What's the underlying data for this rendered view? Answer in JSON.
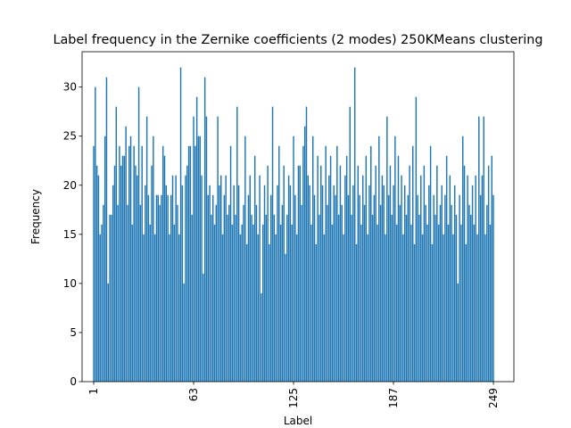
{
  "chart_data": {
    "type": "bar",
    "title": "Label frequency in the Zernike coefficients (2 modes) 250KMeans clustering",
    "xlabel": "Label",
    "ylabel": "Frequency",
    "color": "#1f77b4",
    "x": [
      1,
      2,
      3,
      4,
      5,
      6,
      7,
      8,
      9,
      10,
      11,
      12,
      13,
      14,
      15,
      16,
      17,
      18,
      19,
      20,
      21,
      22,
      23,
      24,
      25,
      26,
      27,
      28,
      29,
      30,
      31,
      32,
      33,
      34,
      35,
      36,
      37,
      38,
      39,
      40,
      41,
      42,
      43,
      44,
      45,
      46,
      47,
      48,
      49,
      50,
      51,
      52,
      53,
      54,
      55,
      56,
      57,
      58,
      59,
      60,
      61,
      62,
      63,
      64,
      65,
      66,
      67,
      68,
      69,
      70,
      71,
      72,
      73,
      74,
      75,
      76,
      77,
      78,
      79,
      80,
      81,
      82,
      83,
      84,
      85,
      86,
      87,
      88,
      89,
      90,
      91,
      92,
      93,
      94,
      95,
      96,
      97,
      98,
      99,
      100,
      101,
      102,
      103,
      104,
      105,
      106,
      107,
      108,
      109,
      110,
      111,
      112,
      113,
      114,
      115,
      116,
      117,
      118,
      119,
      120,
      121,
      122,
      123,
      124,
      125,
      126,
      127,
      128,
      129,
      130,
      131,
      132,
      133,
      134,
      135,
      136,
      137,
      138,
      139,
      140,
      141,
      142,
      143,
      144,
      145,
      146,
      147,
      148,
      149,
      150,
      151,
      152,
      153,
      154,
      155,
      156,
      157,
      158,
      159,
      160,
      161,
      162,
      163,
      164,
      165,
      166,
      167,
      168,
      169,
      170,
      171,
      172,
      173,
      174,
      175,
      176,
      177,
      178,
      179,
      180,
      181,
      182,
      183,
      184,
      185,
      186,
      187,
      188,
      189,
      190,
      191,
      192,
      193,
      194,
      195,
      196,
      197,
      198,
      199,
      200,
      201,
      202,
      203,
      204,
      205,
      206,
      207,
      208,
      209,
      210,
      211,
      212,
      213,
      214,
      215,
      216,
      217,
      218,
      219,
      220,
      221,
      222,
      223,
      224,
      225,
      226,
      227,
      228,
      229,
      230,
      231,
      232,
      233,
      234,
      235,
      236,
      237,
      238,
      239,
      240,
      241,
      242,
      243,
      244,
      245,
      246,
      247,
      248,
      249
    ],
    "values": [
      24,
      30,
      22,
      21,
      15,
      16,
      18,
      25,
      31,
      10,
      17,
      17,
      20,
      22,
      28,
      18,
      24,
      22,
      23,
      23,
      26,
      18,
      24,
      25,
      16,
      24,
      22,
      21,
      30,
      18,
      24,
      15,
      20,
      27,
      19,
      16,
      22,
      25,
      15,
      19,
      19,
      18,
      19,
      24,
      23,
      20,
      19,
      15,
      19,
      21,
      16,
      21,
      18,
      15,
      32,
      20,
      10,
      21,
      22,
      24,
      24,
      17,
      27,
      24,
      29,
      25,
      25,
      21,
      11,
      31,
      27,
      19,
      20,
      17,
      19,
      16,
      18,
      27,
      20,
      21,
      15,
      19,
      21,
      17,
      18,
      24,
      16,
      20,
      17,
      28,
      20,
      15,
      16,
      18,
      25,
      14,
      19,
      21,
      17,
      16,
      23,
      18,
      15,
      21,
      9,
      16,
      20,
      17,
      22,
      14,
      19,
      28,
      17,
      15,
      20,
      24,
      16,
      18,
      22,
      13,
      17,
      21,
      20,
      16,
      25,
      19,
      15,
      22,
      22,
      18,
      24,
      26,
      28,
      21,
      20,
      16,
      25,
      19,
      14,
      23,
      17,
      22,
      20,
      15,
      24,
      18,
      21,
      23,
      16,
      20,
      19,
      24,
      17,
      22,
      18,
      15,
      21,
      23,
      19,
      28,
      17,
      20,
      32,
      14,
      22,
      19,
      16,
      21,
      18,
      23,
      15,
      20,
      24,
      17,
      19,
      22,
      16,
      25,
      18,
      21,
      20,
      15,
      27,
      19,
      22,
      17,
      20,
      25,
      16,
      23,
      18,
      21,
      15,
      20,
      17,
      19,
      22,
      16,
      24,
      14,
      29,
      19,
      17,
      21,
      15,
      22,
      18,
      16,
      20,
      24,
      14,
      19,
      17,
      22,
      16,
      18,
      20,
      15,
      19,
      23,
      16,
      21,
      18,
      15,
      20,
      17,
      10,
      19,
      16,
      25,
      22,
      14,
      21,
      18,
      17,
      20,
      16,
      21,
      15,
      27,
      19,
      21,
      27,
      15,
      18,
      22,
      16,
      23,
      19
    ],
    "xlim": [
      -6.2,
      261.7
    ],
    "xticks": [
      1,
      63,
      125,
      187,
      249
    ],
    "ylim": [
      0,
      33.6
    ],
    "yticks": [
      0,
      5,
      10,
      15,
      20,
      25,
      30
    ]
  }
}
